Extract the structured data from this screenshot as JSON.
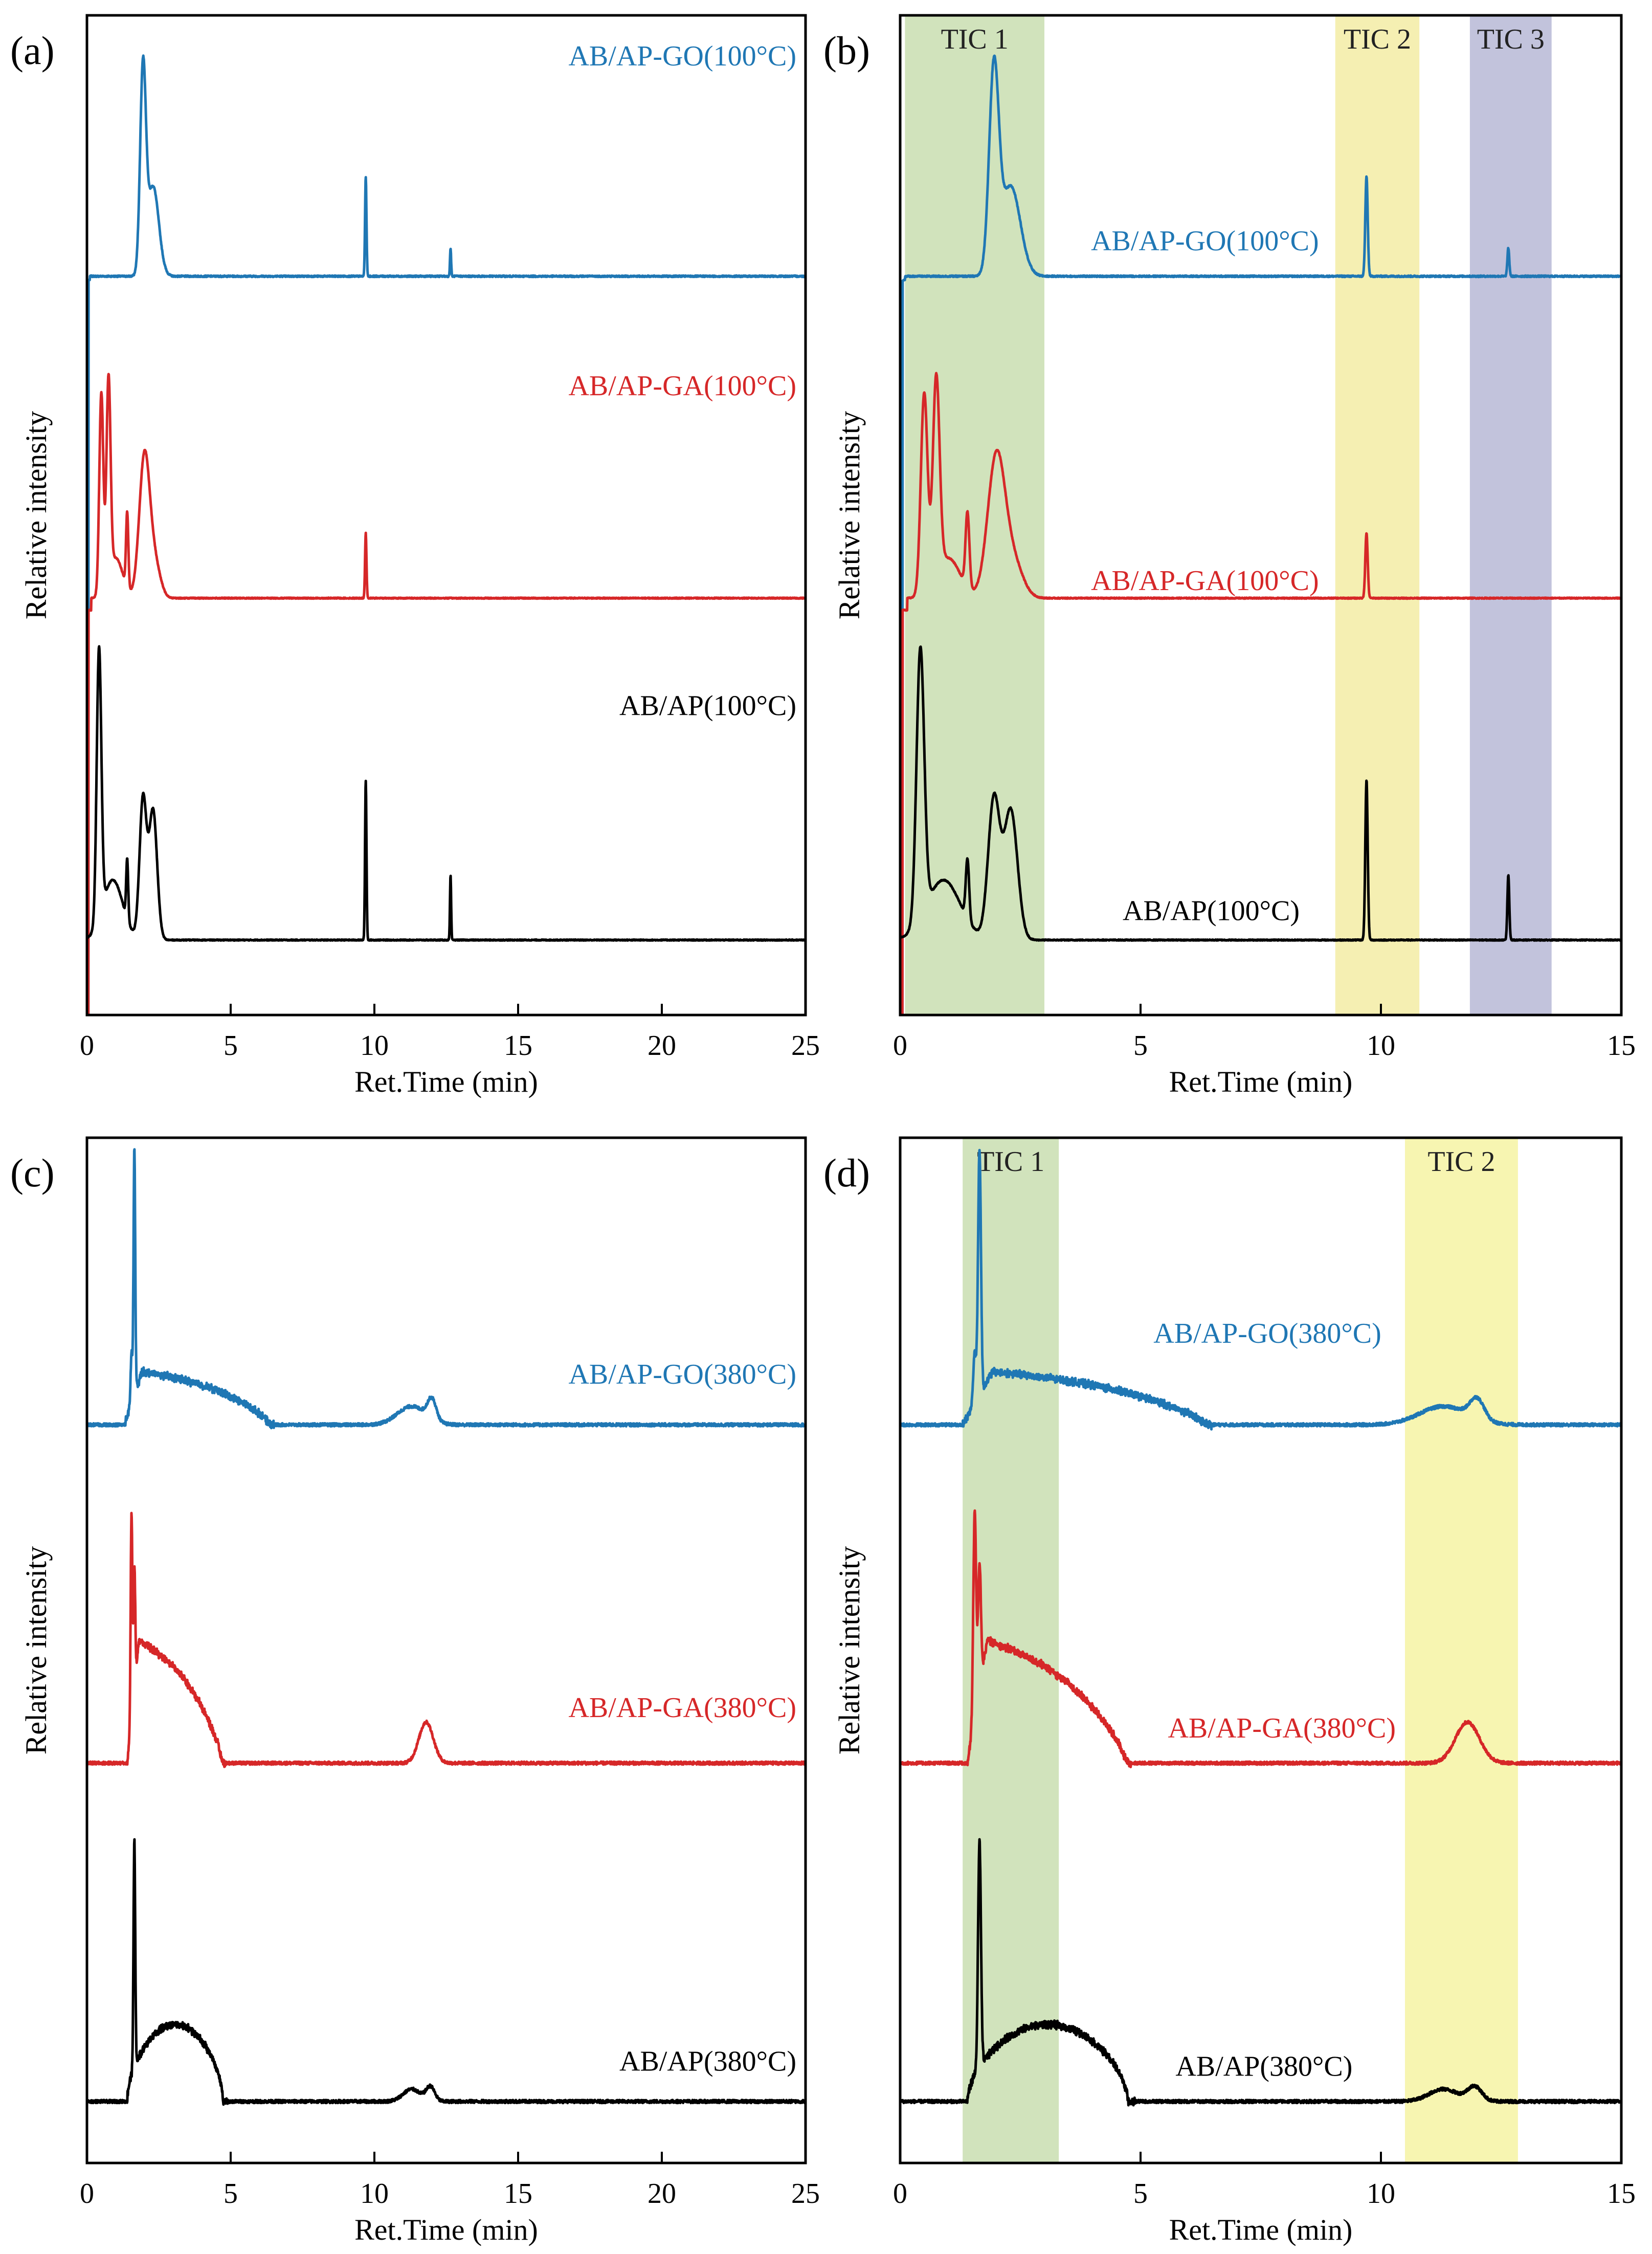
{
  "figure": {
    "description_text": ""
  },
  "chart_data": [
    {
      "panel_label": "(a)",
      "type": "line",
      "xlabel": "Ret.Time (min)",
      "ylabel": "Relative intensity",
      "xlim": [
        0,
        25
      ],
      "xticks": [
        0,
        5,
        10,
        15,
        20,
        25
      ],
      "legend_placement": "labels at right of each trace",
      "regions": [],
      "series": [
        {
          "name": "AB/AP-GO(100°C)",
          "color": "#1f77b4",
          "label_x": 25,
          "label_anchor": "end",
          "label_height": 0.95,
          "baseline": 0.735,
          "noise": 0.0015,
          "peaks": [
            {
              "x": 1.95,
              "h": 0.2,
              "w": 0.1
            },
            {
              "x": 2.3,
              "h": 0.09,
              "w": 0.2
            },
            {
              "x": 9.7,
              "h": 0.1,
              "w": 0.025
            },
            {
              "x": 12.65,
              "h": 0.028,
              "w": 0.02
            }
          ],
          "steps": [
            {
              "x": 0.1,
              "dy": 0.004
            }
          ],
          "start": 0.05
        },
        {
          "name": "AB/AP-GA(100°C)",
          "color": "#d62728",
          "label_x": 25,
          "label_anchor": "end",
          "label_height": 0.62,
          "baseline": 0.405,
          "noise": 0.001,
          "peaks": [
            {
              "x": 0.5,
              "h": 0.2,
              "w": 0.07
            },
            {
              "x": 0.75,
              "h": 0.2,
              "w": 0.07
            },
            {
              "x": 1.0,
              "h": 0.04,
              "w": 0.25
            },
            {
              "x": 1.4,
              "h": 0.075,
              "w": 0.04
            },
            {
              "x": 2.0,
              "h": 0.14,
              "w": 0.18
            },
            {
              "x": 2.35,
              "h": 0.035,
              "w": 0.2
            },
            {
              "x": 9.7,
              "h": 0.065,
              "w": 0.025
            }
          ],
          "steps": [
            {
              "x": 0.15,
              "dy": 0.012
            }
          ],
          "start": 0.05
        },
        {
          "name": "AB/AP(100°C)",
          "color": "#000000",
          "label_x": 25,
          "label_anchor": "end",
          "label_height": 0.3,
          "baseline": 0.075,
          "noise": 0.001,
          "peaks": [
            {
              "x": 0.42,
              "h": 0.27,
              "w": 0.08
            },
            {
              "x": 0.9,
              "h": 0.06,
              "w": 0.35
            },
            {
              "x": 1.4,
              "h": 0.06,
              "w": 0.035
            },
            {
              "x": 1.95,
              "h": 0.14,
              "w": 0.12
            },
            {
              "x": 2.3,
              "h": 0.13,
              "w": 0.14
            },
            {
              "x": 9.7,
              "h": 0.16,
              "w": 0.025
            },
            {
              "x": 12.65,
              "h": 0.065,
              "w": 0.02
            }
          ],
          "steps": [],
          "start": 0.0
        }
      ]
    },
    {
      "panel_label": "(b)",
      "type": "line",
      "xlabel": "Ret.Time (min)",
      "ylabel": "Relative intensity",
      "xlim": [
        0,
        15
      ],
      "xticks": [
        0,
        5,
        10,
        15
      ],
      "legend_placement": "labels beside each trace",
      "regions": [
        {
          "label": "TIC 1",
          "from": 0.1,
          "to": 3.0,
          "color": "#c9deb0"
        },
        {
          "label": "TIC 2",
          "from": 9.05,
          "to": 10.8,
          "color": "#f3eca5"
        },
        {
          "label": "TIC 3",
          "from": 11.85,
          "to": 13.55,
          "color": "#b7b9d6"
        }
      ],
      "series": [
        {
          "name": "AB/AP-GO(100°C)",
          "color": "#1f77b4",
          "label_x": 8.9,
          "label_anchor": "end",
          "label_height": 0.765,
          "baseline": 0.735,
          "noise": 0.0015,
          "peaks": [
            {
              "x": 1.95,
              "h": 0.2,
              "w": 0.1
            },
            {
              "x": 2.3,
              "h": 0.09,
              "w": 0.2
            },
            {
              "x": 9.7,
              "h": 0.1,
              "w": 0.025
            },
            {
              "x": 12.65,
              "h": 0.028,
              "w": 0.02
            }
          ],
          "steps": [
            {
              "x": 0.1,
              "dy": 0.004
            }
          ],
          "start": 0.05
        },
        {
          "name": "AB/AP-GA(100°C)",
          "color": "#d62728",
          "label_x": 8.9,
          "label_anchor": "end",
          "label_height": 0.425,
          "baseline": 0.405,
          "noise": 0.001,
          "peaks": [
            {
              "x": 0.5,
              "h": 0.2,
              "w": 0.07
            },
            {
              "x": 0.75,
              "h": 0.2,
              "w": 0.07
            },
            {
              "x": 1.0,
              "h": 0.04,
              "w": 0.25
            },
            {
              "x": 1.4,
              "h": 0.075,
              "w": 0.04
            },
            {
              "x": 2.0,
              "h": 0.14,
              "w": 0.18
            },
            {
              "x": 2.35,
              "h": 0.035,
              "w": 0.2
            },
            {
              "x": 9.7,
              "h": 0.065,
              "w": 0.025
            }
          ],
          "steps": [
            {
              "x": 0.15,
              "dy": 0.012
            }
          ],
          "start": 0.05
        },
        {
          "name": "AB/AP(100°C)",
          "color": "#000000",
          "label_x": 8.5,
          "label_anchor": "end",
          "label_height": 0.095,
          "baseline": 0.075,
          "noise": 0.001,
          "peaks": [
            {
              "x": 0.42,
              "h": 0.27,
              "w": 0.08
            },
            {
              "x": 0.9,
              "h": 0.06,
              "w": 0.35
            },
            {
              "x": 1.4,
              "h": 0.06,
              "w": 0.035
            },
            {
              "x": 1.95,
              "h": 0.14,
              "w": 0.12
            },
            {
              "x": 2.3,
              "h": 0.13,
              "w": 0.14
            },
            {
              "x": 9.7,
              "h": 0.16,
              "w": 0.025
            },
            {
              "x": 12.65,
              "h": 0.065,
              "w": 0.02
            }
          ],
          "steps": [],
          "start": 0.0
        }
      ]
    },
    {
      "panel_label": "(c)",
      "type": "line",
      "xlabel": "Ret.Time (min)",
      "ylabel": "Relative intensity",
      "xlim": [
        0,
        25
      ],
      "xticks": [
        0,
        5,
        10,
        15,
        20,
        25
      ],
      "legend_placement": "labels at right of each trace",
      "regions": [],
      "series": [
        {
          "name": "AB/AP-GO(380°C)",
          "color": "#1f77b4",
          "label_x": 25,
          "label_anchor": "end",
          "label_height": 0.76,
          "baseline": 0.72,
          "noise": 0.003,
          "hump": {
            "x0": 1.3,
            "x1": 6.5,
            "h": 0.052,
            "shape": "descending"
          },
          "peaks": [
            {
              "x": 1.65,
              "h": 0.24,
              "w": 0.03
            },
            {
              "x": 1.55,
              "h": 0.05,
              "w": 0.03
            },
            {
              "x": 11.3,
              "h": 0.018,
              "w": 0.5
            },
            {
              "x": 12.0,
              "h": 0.02,
              "w": 0.15
            }
          ],
          "steps": [],
          "start": 0.0
        },
        {
          "name": "AB/AP-GA(380°C)",
          "color": "#d62728",
          "label_x": 25,
          "label_anchor": "end",
          "label_height": 0.435,
          "baseline": 0.39,
          "noise": 0.003,
          "hump": {
            "x0": 1.4,
            "x1": 4.8,
            "h": 0.12,
            "shape": "descending"
          },
          "peaks": [
            {
              "x": 1.55,
              "h": 0.2,
              "w": 0.03
            },
            {
              "x": 1.65,
              "h": 0.12,
              "w": 0.03
            },
            {
              "x": 11.8,
              "h": 0.04,
              "w": 0.25
            }
          ],
          "steps": [],
          "start": 0.0
        },
        {
          "name": "AB/AP(380°C)",
          "color": "#000000",
          "label_x": 25,
          "label_anchor": "end",
          "label_height": 0.09,
          "baseline": 0.06,
          "noise": 0.003,
          "hump": {
            "x0": 1.4,
            "x1": 4.9,
            "h": 0.075,
            "shape": "dome"
          },
          "peaks": [
            {
              "x": 1.65,
              "h": 0.22,
              "w": 0.03
            },
            {
              "x": 11.3,
              "h": 0.012,
              "w": 0.3
            },
            {
              "x": 11.95,
              "h": 0.014,
              "w": 0.15
            }
          ],
          "steps": [],
          "start": 0.0
        }
      ]
    },
    {
      "panel_label": "(d)",
      "type": "line",
      "xlabel": "Ret.Time (min)",
      "ylabel": "Relative intensity",
      "xlim": [
        0,
        15
      ],
      "xticks": [
        0,
        5,
        10,
        15
      ],
      "legend_placement": "labels beside each trace",
      "regions": [
        {
          "label": "TIC 1",
          "from": 1.3,
          "to": 3.3,
          "color": "#c9deb0"
        },
        {
          "label": "TIC 2",
          "from": 10.5,
          "to": 12.85,
          "color": "#f6f3a3"
        }
      ],
      "series": [
        {
          "name": "AB/AP-GO(380°C)",
          "color": "#1f77b4",
          "label_x": 10.2,
          "label_anchor": "end",
          "label_height": 0.8,
          "baseline": 0.72,
          "noise": 0.003,
          "hump": {
            "x0": 1.3,
            "x1": 6.5,
            "h": 0.052,
            "shape": "descending"
          },
          "peaks": [
            {
              "x": 1.65,
              "h": 0.24,
              "w": 0.03
            },
            {
              "x": 1.55,
              "h": 0.05,
              "w": 0.03
            },
            {
              "x": 11.3,
              "h": 0.018,
              "w": 0.5
            },
            {
              "x": 12.0,
              "h": 0.02,
              "w": 0.15
            }
          ],
          "steps": [],
          "start": 0.0
        },
        {
          "name": "AB/AP-GA(380°C)",
          "color": "#d62728",
          "label_x": 10.5,
          "label_anchor": "end",
          "label_height": 0.415,
          "baseline": 0.39,
          "noise": 0.003,
          "hump": {
            "x0": 1.4,
            "x1": 4.8,
            "h": 0.12,
            "shape": "descending"
          },
          "peaks": [
            {
              "x": 1.55,
              "h": 0.2,
              "w": 0.03
            },
            {
              "x": 1.65,
              "h": 0.12,
              "w": 0.03
            },
            {
              "x": 11.8,
              "h": 0.04,
              "w": 0.25
            }
          ],
          "steps": [],
          "start": 0.0
        },
        {
          "name": "AB/AP(380°C)",
          "color": "#000000",
          "label_x": 9.6,
          "label_anchor": "end",
          "label_height": 0.085,
          "baseline": 0.06,
          "noise": 0.003,
          "hump": {
            "x0": 1.4,
            "x1": 4.9,
            "h": 0.075,
            "shape": "dome"
          },
          "peaks": [
            {
              "x": 1.65,
              "h": 0.22,
              "w": 0.03
            },
            {
              "x": 11.3,
              "h": 0.012,
              "w": 0.3
            },
            {
              "x": 11.95,
              "h": 0.014,
              "w": 0.15
            }
          ],
          "steps": [],
          "start": 0.0
        }
      ]
    }
  ]
}
